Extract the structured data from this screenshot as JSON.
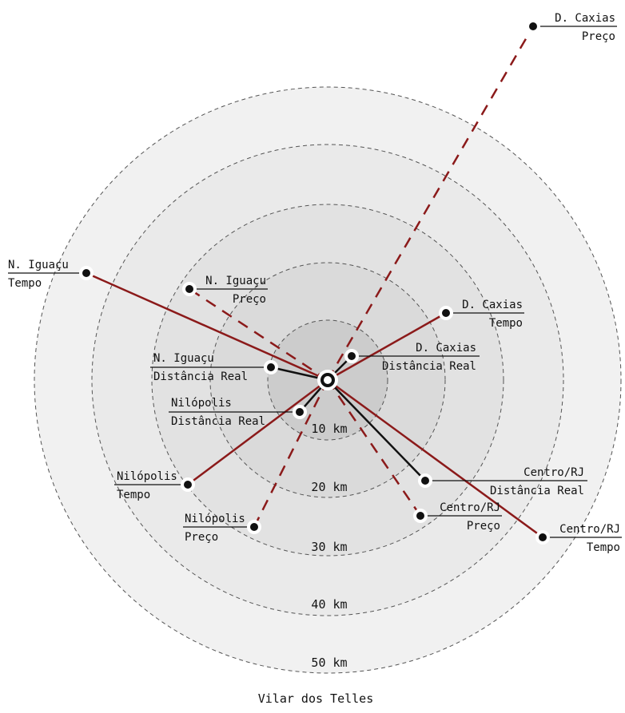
{
  "caption": "Vilar dos Telles",
  "colors": {
    "tempo": "#8b1a1a",
    "preco": "#8b1a1a",
    "distancia": "#111111",
    "ring_stroke": "#555555"
  },
  "rings": [
    {
      "km": 10,
      "label": "10 km"
    },
    {
      "km": 20,
      "label": "20 km"
    },
    {
      "km": 30,
      "label": "30 km"
    },
    {
      "km": 40,
      "label": "40 km"
    },
    {
      "km": 50,
      "label": "50 km"
    }
  ],
  "points": [
    {
      "id": "dcaxias-preco",
      "kind": "preco",
      "line1": "D. Caxias",
      "line2": "Preço"
    },
    {
      "id": "niguacu-tempo",
      "kind": "tempo",
      "line1": "N. Iguaçu",
      "line2": "Tempo"
    },
    {
      "id": "niguacu-preco",
      "kind": "preco",
      "line1": "N. Iguaçu",
      "line2": "Preço"
    },
    {
      "id": "dcaxias-tempo",
      "kind": "tempo",
      "line1": "D. Caxias",
      "line2": "Tempo"
    },
    {
      "id": "dcaxias-dist",
      "kind": "distancia",
      "line1": "D. Caxias",
      "line2": "Distância Real"
    },
    {
      "id": "niguacu-dist",
      "kind": "distancia",
      "line1": "N. Iguaçu",
      "line2": "Distância Real"
    },
    {
      "id": "nilopolis-dist",
      "kind": "distancia",
      "line1": "Nilópolis",
      "line2": "Distância Real"
    },
    {
      "id": "centro-dist",
      "kind": "distancia",
      "line1": "Centro/RJ",
      "line2": "Distância Real"
    },
    {
      "id": "nilopolis-tempo",
      "kind": "tempo",
      "line1": "Nilópolis",
      "line2": "Tempo"
    },
    {
      "id": "nilopolis-preco",
      "kind": "preco",
      "line1": "Nilópolis",
      "line2": "Preço"
    },
    {
      "id": "centro-preco",
      "kind": "preco",
      "line1": "Centro/RJ",
      "line2": "Preço"
    },
    {
      "id": "centro-tempo",
      "kind": "tempo",
      "line1": "Centro/RJ",
      "line2": "Tempo"
    }
  ]
}
